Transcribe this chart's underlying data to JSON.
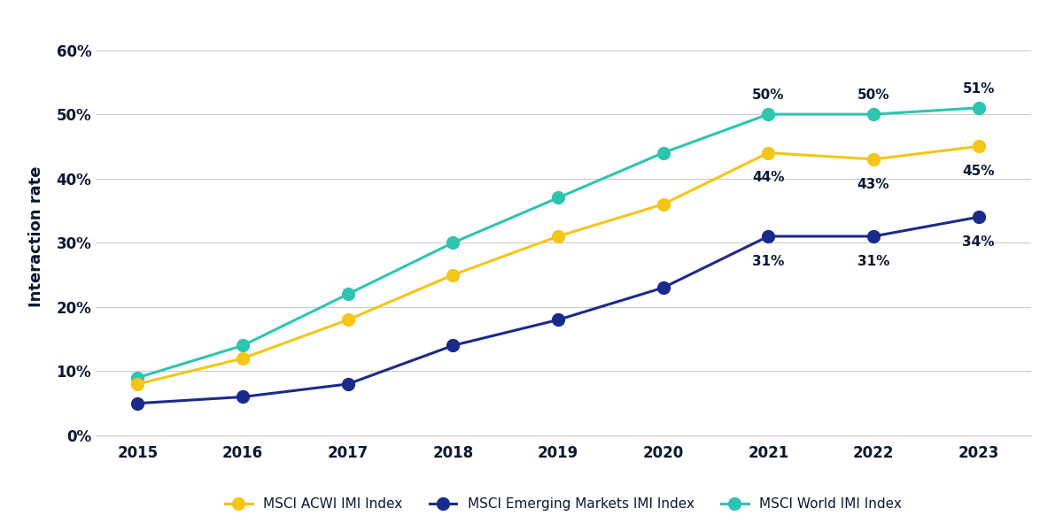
{
  "years": [
    2015,
    2016,
    2017,
    2018,
    2019,
    2020,
    2021,
    2022,
    2023
  ],
  "acwi_imi": [
    0.08,
    0.12,
    0.18,
    0.25,
    0.31,
    0.36,
    0.44,
    0.43,
    0.45
  ],
  "em_imi": [
    0.05,
    0.06,
    0.08,
    0.14,
    0.18,
    0.23,
    0.31,
    0.31,
    0.34
  ],
  "world_imi": [
    0.09,
    0.14,
    0.22,
    0.3,
    0.37,
    0.44,
    0.5,
    0.5,
    0.51
  ],
  "acwi_color": "#F5C518",
  "em_color": "#1B2A8A",
  "world_color": "#2DC5B0",
  "acwi_label": "MSCI ACWI IMI Index",
  "em_label": "MSCI Emerging Markets IMI Index",
  "world_label": "MSCI World IMI Index",
  "ylabel": "Interaction rate",
  "ylim": [
    0,
    0.62
  ],
  "yticks": [
    0.0,
    0.1,
    0.2,
    0.3,
    0.4,
    0.5,
    0.6
  ],
  "annotate_years": [
    2021,
    2022,
    2023
  ],
  "annotate_acwi": [
    0.44,
    0.43,
    0.45
  ],
  "annotate_em": [
    0.31,
    0.31,
    0.34
  ],
  "annotate_world": [
    0.5,
    0.5,
    0.51
  ],
  "bg_color": "#FFFFFF",
  "grid_color": "#CCCCCC",
  "marker_size": 10,
  "line_width": 2.2,
  "font_color": "#0A1931",
  "annotation_fontsize": 11,
  "tick_fontsize": 12,
  "legend_fontsize": 11,
  "ylabel_fontsize": 13
}
